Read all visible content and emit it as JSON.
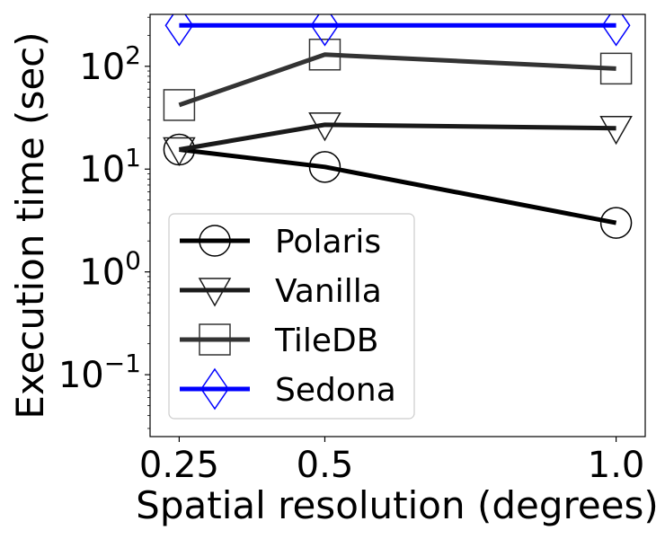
{
  "chart_data": {
    "type": "line",
    "x": [
      0.25,
      0.5,
      1.0
    ],
    "x_ticks": [
      "0.25",
      "0.5",
      "1.0"
    ],
    "y_scale": "log",
    "y_ticks": [
      {
        "value": 0.1,
        "base": "10",
        "exp": "−1"
      },
      {
        "value": 1,
        "base": "10",
        "exp": "0"
      },
      {
        "value": 10,
        "base": "10",
        "exp": "1"
      },
      {
        "value": 100,
        "base": "10",
        "exp": "2"
      }
    ],
    "xlabel": "Spatial resolution (degrees)",
    "ylabel": "Execution time (sec)",
    "xlim": [
      0.2,
      1.05
    ],
    "ylim": [
      0.025,
      320
    ],
    "grid": false,
    "legend_position": "lower-left",
    "series": [
      {
        "name": "Polaris",
        "values": [
          15.5,
          10.5,
          3.0
        ],
        "color": "#000000",
        "marker": "circle"
      },
      {
        "name": "Vanilla",
        "values": [
          15.5,
          27,
          25
        ],
        "color": "#1a1a1a",
        "marker": "triangle-down"
      },
      {
        "name": "TileDB",
        "values": [
          42,
          130,
          95
        ],
        "color": "#333333",
        "marker": "square"
      },
      {
        "name": "Sedona",
        "values": [
          250,
          250,
          250
        ],
        "color": "#0000ff",
        "marker": "diamond"
      }
    ]
  }
}
